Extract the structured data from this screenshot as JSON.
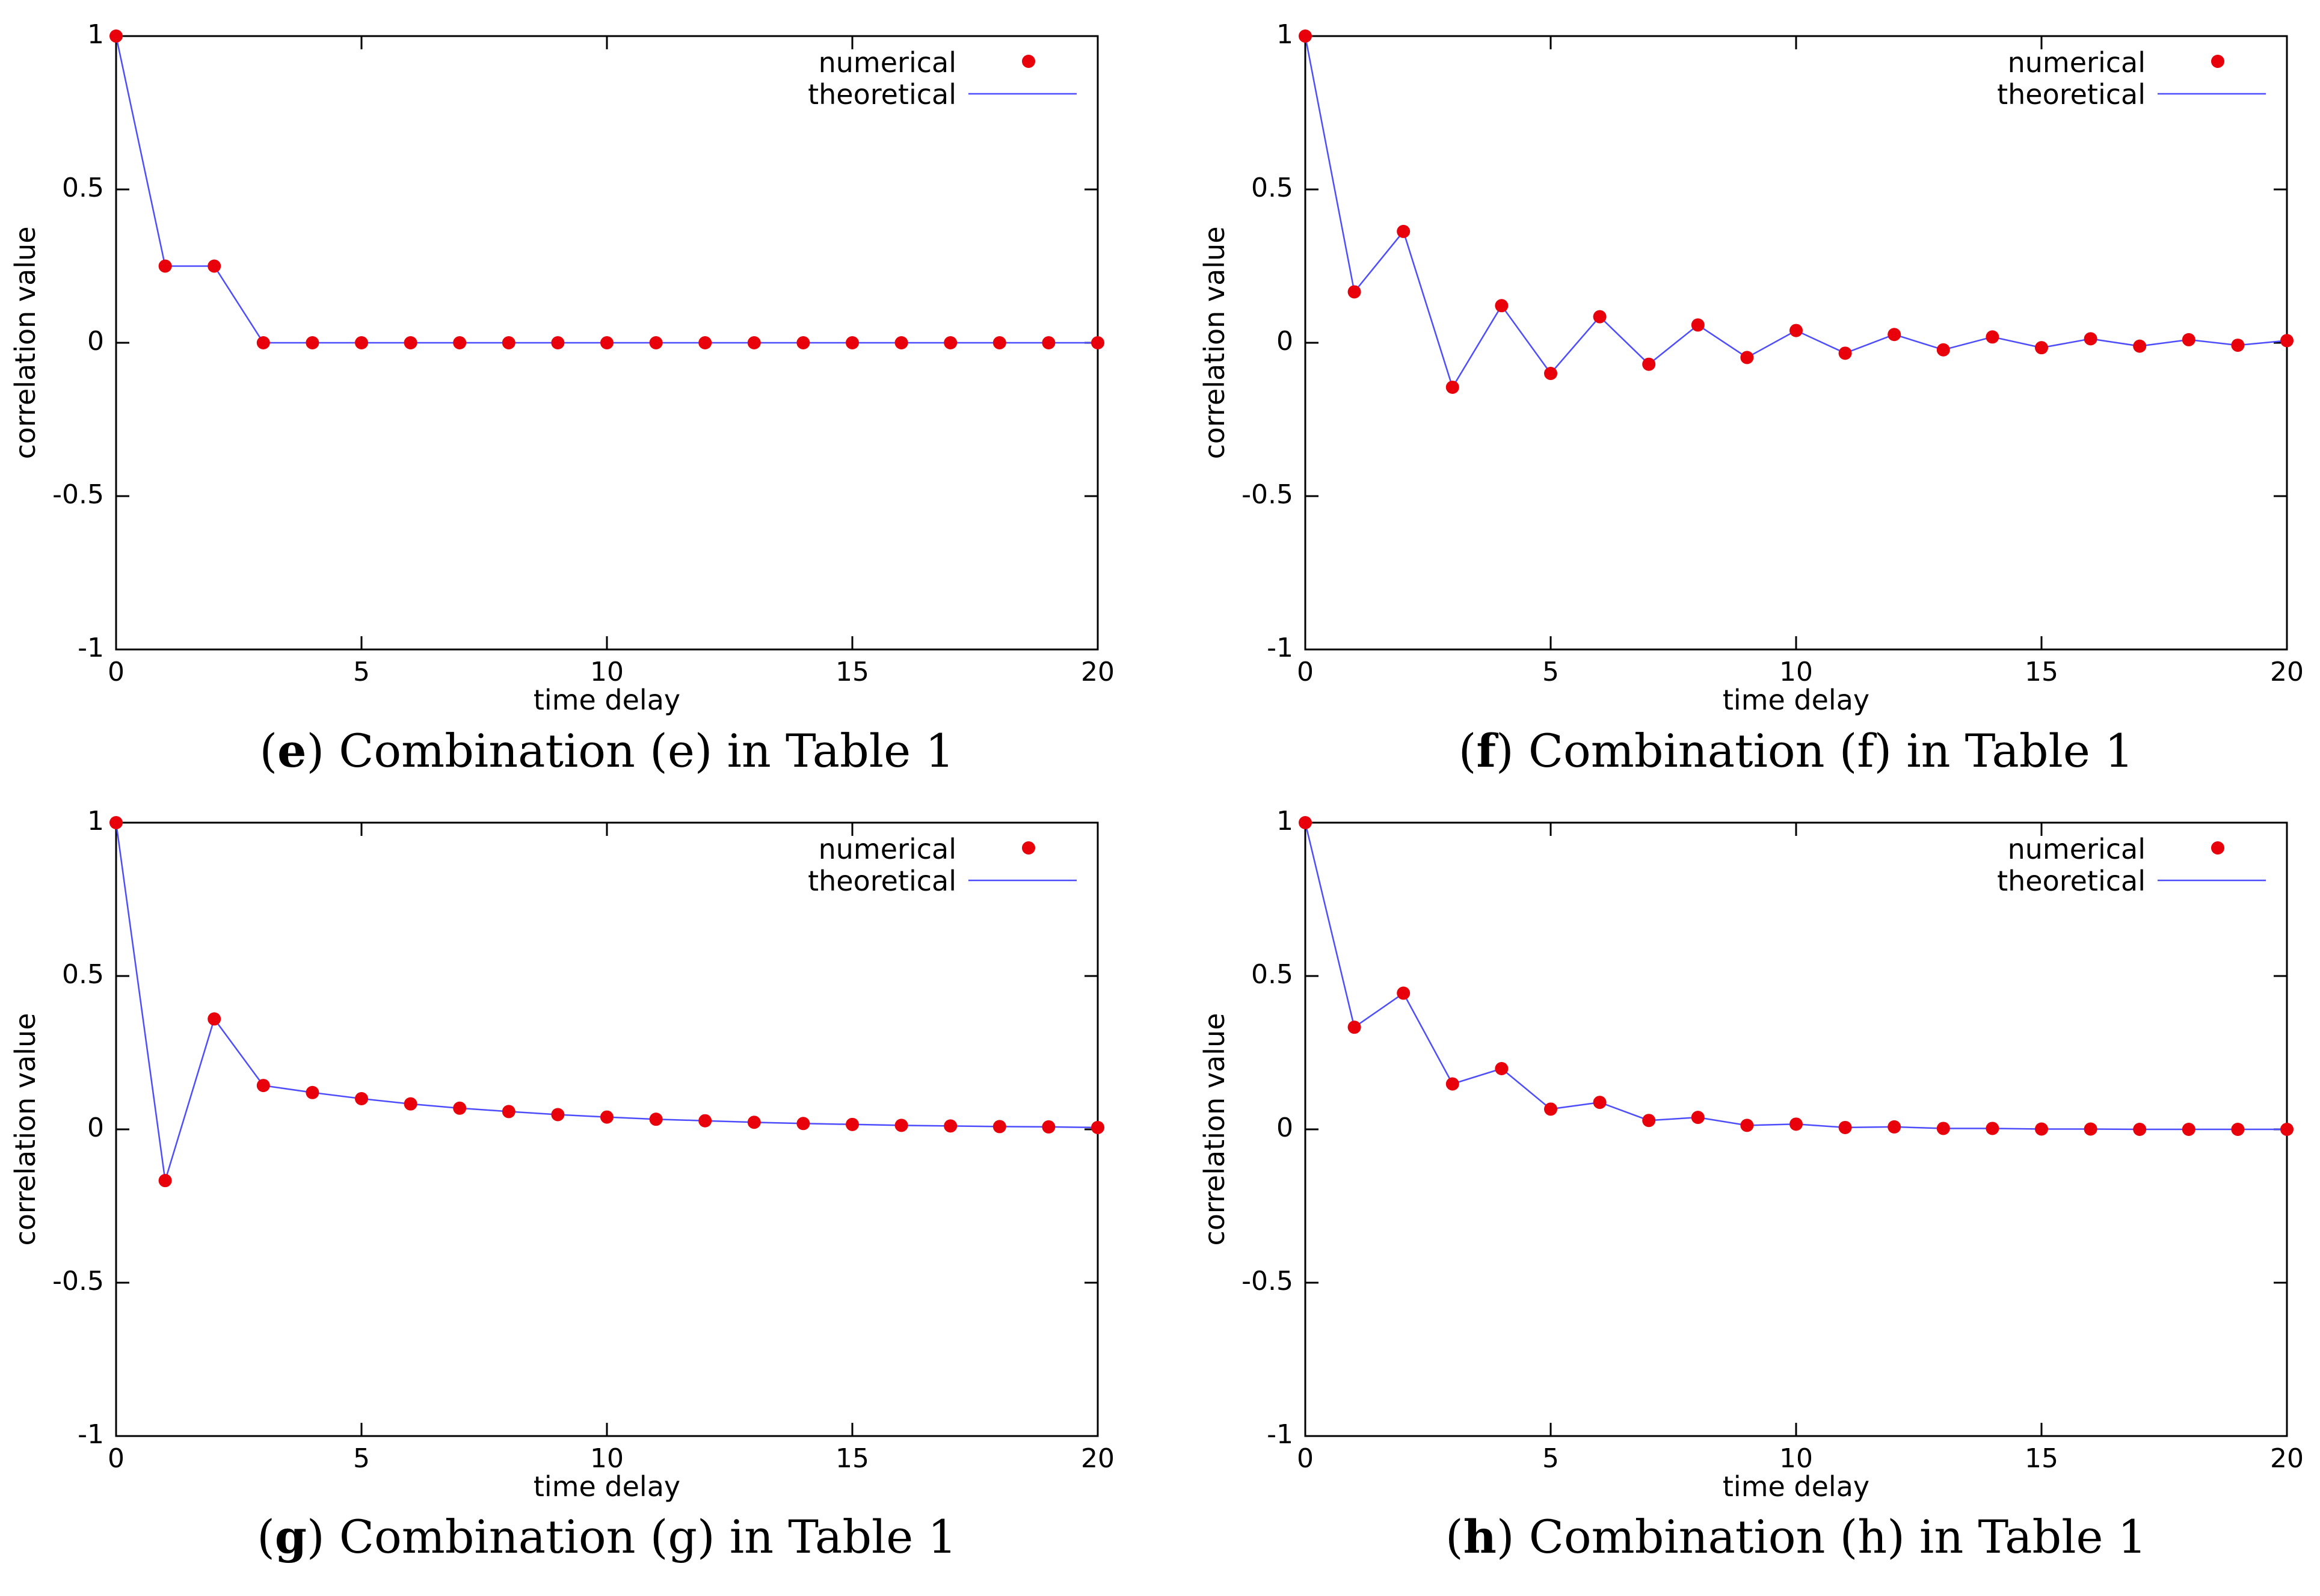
{
  "colors": {
    "numerical": "#e8000b",
    "theoretical": "#4d4dff",
    "frame": "#000000"
  },
  "chart_data": [
    {
      "type": "line",
      "panel": "e",
      "caption": {
        "letter": "e",
        "text": "Combination (e) in Table 1"
      },
      "xlabel": "time delay",
      "ylabel": "correlation value",
      "xlim": [
        0,
        20
      ],
      "ylim": [
        -1,
        1
      ],
      "xticks": [
        0,
        5,
        10,
        15,
        20
      ],
      "yticks": [
        -1,
        -0.5,
        0,
        0.5,
        1
      ],
      "ytick_labels": [
        "-1",
        "-0.5",
        "0",
        "0.5",
        "1"
      ],
      "legend": [
        "numerical",
        "theoretical"
      ],
      "legend_position": "top-right",
      "x": [
        0,
        1,
        2,
        3,
        4,
        5,
        6,
        7,
        8,
        9,
        10,
        11,
        12,
        13,
        14,
        15,
        16,
        17,
        18,
        19,
        20
      ],
      "series": [
        {
          "name": "numerical",
          "style": "points",
          "values": [
            1,
            0.25,
            0.25,
            0,
            0,
            0,
            0,
            0,
            0,
            0,
            0,
            0,
            0,
            0,
            0,
            0,
            0,
            0,
            0,
            0,
            0
          ]
        },
        {
          "name": "theoretical",
          "style": "line",
          "values": [
            1,
            0.25,
            0.25,
            0,
            0,
            0,
            0,
            0,
            0,
            0,
            0,
            0,
            0,
            0,
            0,
            0,
            0,
            0,
            0,
            0,
            0
          ]
        }
      ]
    },
    {
      "type": "line",
      "panel": "f",
      "caption": {
        "letter": "f",
        "text": "Combination (f) in Table 1"
      },
      "xlabel": "time delay",
      "ylabel": "correlation value",
      "xlim": [
        0,
        20
      ],
      "ylim": [
        -1,
        1
      ],
      "xticks": [
        0,
        5,
        10,
        15,
        20
      ],
      "yticks": [
        -1,
        -0.5,
        0,
        0.5,
        1
      ],
      "ytick_labels": [
        "-1",
        "-0.5",
        "0",
        "0.5",
        "1"
      ],
      "legend": [
        "numerical",
        "theoretical"
      ],
      "legend_position": "top-right",
      "x": [
        0,
        1,
        2,
        3,
        4,
        5,
        6,
        7,
        8,
        9,
        10,
        11,
        12,
        13,
        14,
        15,
        16,
        17,
        18,
        19,
        20
      ],
      "series": [
        {
          "name": "numerical",
          "style": "points",
          "values": [
            1,
            0.166,
            0.363,
            -0.145,
            0.121,
            -0.1,
            0.085,
            -0.07,
            0.058,
            -0.048,
            0.04,
            -0.034,
            0.027,
            -0.023,
            0.019,
            -0.016,
            0.013,
            -0.011,
            0.01,
            -0.008,
            0.007
          ]
        },
        {
          "name": "theoretical",
          "style": "line",
          "values": [
            1,
            0.166,
            0.363,
            -0.145,
            0.121,
            -0.1,
            0.085,
            -0.07,
            0.058,
            -0.048,
            0.04,
            -0.034,
            0.027,
            -0.023,
            0.019,
            -0.016,
            0.013,
            -0.011,
            0.01,
            -0.008,
            0.007
          ]
        }
      ]
    },
    {
      "type": "line",
      "panel": "g",
      "caption": {
        "letter": "g",
        "text": "Combination (g) in Table 1"
      },
      "xlabel": "time delay",
      "ylabel": "correlation value",
      "xlim": [
        0,
        20
      ],
      "ylim": [
        -1,
        1
      ],
      "xticks": [
        0,
        5,
        10,
        15,
        20
      ],
      "yticks": [
        -1,
        -0.5,
        0,
        0.5,
        1
      ],
      "ytick_labels": [
        "-1",
        "-0.5",
        "0",
        "0.5",
        "1"
      ],
      "legend": [
        "numerical",
        "theoretical"
      ],
      "legend_position": "top-right",
      "x": [
        0,
        1,
        2,
        3,
        4,
        5,
        6,
        7,
        8,
        9,
        10,
        11,
        12,
        13,
        14,
        15,
        16,
        17,
        18,
        19,
        20
      ],
      "series": [
        {
          "name": "numerical",
          "style": "points",
          "values": [
            1,
            -0.167,
            0.36,
            0.143,
            0.12,
            0.1,
            0.083,
            0.069,
            0.058,
            0.048,
            0.04,
            0.033,
            0.028,
            0.023,
            0.019,
            0.016,
            0.013,
            0.011,
            0.009,
            0.008,
            0.006
          ]
        },
        {
          "name": "theoretical",
          "style": "line",
          "values": [
            1,
            -0.167,
            0.36,
            0.143,
            0.12,
            0.1,
            0.083,
            0.069,
            0.058,
            0.048,
            0.04,
            0.033,
            0.028,
            0.023,
            0.019,
            0.016,
            0.013,
            0.011,
            0.009,
            0.008,
            0.006
          ]
        }
      ]
    },
    {
      "type": "line",
      "panel": "h",
      "caption": {
        "letter": "h",
        "text": "Combination (h) in Table 1"
      },
      "xlabel": "time delay",
      "ylabel": "correlation value",
      "xlim": [
        0,
        20
      ],
      "ylim": [
        -1,
        1
      ],
      "xticks": [
        0,
        5,
        10,
        15,
        20
      ],
      "yticks": [
        -1,
        -0.5,
        0,
        0.5,
        1
      ],
      "ytick_labels": [
        "-1",
        "-0.5",
        "0",
        "0.5",
        "1"
      ],
      "legend": [
        "numerical",
        "theoretical"
      ],
      "legend_position": "top-right",
      "x": [
        0,
        1,
        2,
        3,
        4,
        5,
        6,
        7,
        8,
        9,
        10,
        11,
        12,
        13,
        14,
        15,
        16,
        17,
        18,
        19,
        20
      ],
      "series": [
        {
          "name": "numerical",
          "style": "points",
          "values": [
            1,
            0.333,
            0.444,
            0.148,
            0.198,
            0.066,
            0.088,
            0.029,
            0.039,
            0.013,
            0.017,
            0.006,
            0.008,
            0.003,
            0.003,
            0.001,
            0.001,
            0,
            0,
            0,
            0
          ]
        },
        {
          "name": "theoretical",
          "style": "line",
          "values": [
            1,
            0.333,
            0.444,
            0.148,
            0.198,
            0.066,
            0.088,
            0.029,
            0.039,
            0.013,
            0.017,
            0.006,
            0.008,
            0.003,
            0.003,
            0.001,
            0.001,
            0,
            0,
            0,
            0
          ]
        }
      ]
    }
  ]
}
